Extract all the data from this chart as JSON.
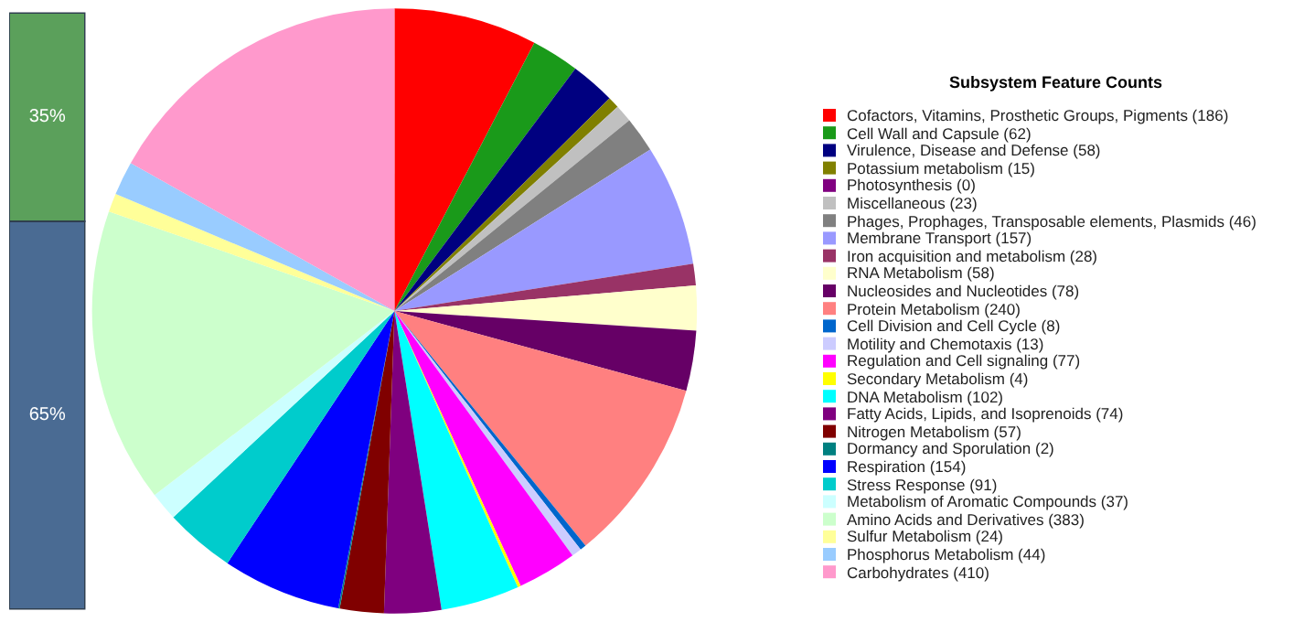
{
  "chart_data": [
    {
      "type": "bar",
      "stacked": true,
      "categories": [
        null
      ],
      "tick_labels": false,
      "ylim": [
        0,
        100
      ],
      "series": [
        {
          "color": "#4a6b93",
          "values": [
            65
          ],
          "value_labels": [
            "65%"
          ]
        },
        {
          "color": "#5ba05b",
          "values": [
            35
          ],
          "value_labels": [
            "35%"
          ]
        }
      ]
    },
    {
      "type": "pie",
      "legend_title": "Subsystem Feature Counts",
      "legend": "right",
      "categories": [
        "Cofactors, Vitamins, Prosthetic Groups, Pigments (186)",
        "Cell Wall and Capsule (62)",
        "Virulence, Disease and Defense (58)",
        "Potassium metabolism (15)",
        "Photosynthesis (0)",
        "Miscellaneous (23)",
        "Phages, Prophages, Transposable elements, Plasmids (46)",
        "Membrane Transport (157)",
        "Iron acquisition and metabolism (28)",
        "RNA Metabolism (58)",
        "Nucleosides and Nucleotides (78)",
        "Protein Metabolism (240)",
        "Cell Division and Cell Cycle (8)",
        "Motility and Chemotaxis (13)",
        "Regulation and Cell signaling (77)",
        "Secondary Metabolism (4)",
        "DNA Metabolism (102)",
        "Fatty Acids, Lipids, and Isoprenoids (74)",
        "Nitrogen Metabolism (57)",
        "Dormancy and Sporulation (2)",
        "Respiration (154)",
        "Stress Response (91)",
        "Metabolism of Aromatic Compounds (37)",
        "Amino Acids and Derivatives (383)",
        "Sulfur Metabolism (24)",
        "Phosphorus Metabolism (44)",
        "Carbohydrates (410)"
      ],
      "values": [
        186,
        62,
        58,
        15,
        0,
        23,
        46,
        157,
        28,
        58,
        78,
        240,
        8,
        13,
        77,
        4,
        102,
        74,
        57,
        2,
        154,
        91,
        37,
        383,
        24,
        44,
        410
      ],
      "colors": [
        "#ff0000",
        "#1a9a1a",
        "#000080",
        "#808000",
        "#800080",
        "#c0c0c0",
        "#808080",
        "#9999ff",
        "#993366",
        "#ffffcc",
        "#660066",
        "#ff8080",
        "#0066cc",
        "#ccccff",
        "#ff00ff",
        "#ffff00",
        "#00ffff",
        "#7f007f",
        "#800000",
        "#008080",
        "#0000ff",
        "#00cccc",
        "#ccffff",
        "#ccffcc",
        "#ffff99",
        "#99ccff",
        "#ff99cc"
      ]
    }
  ]
}
